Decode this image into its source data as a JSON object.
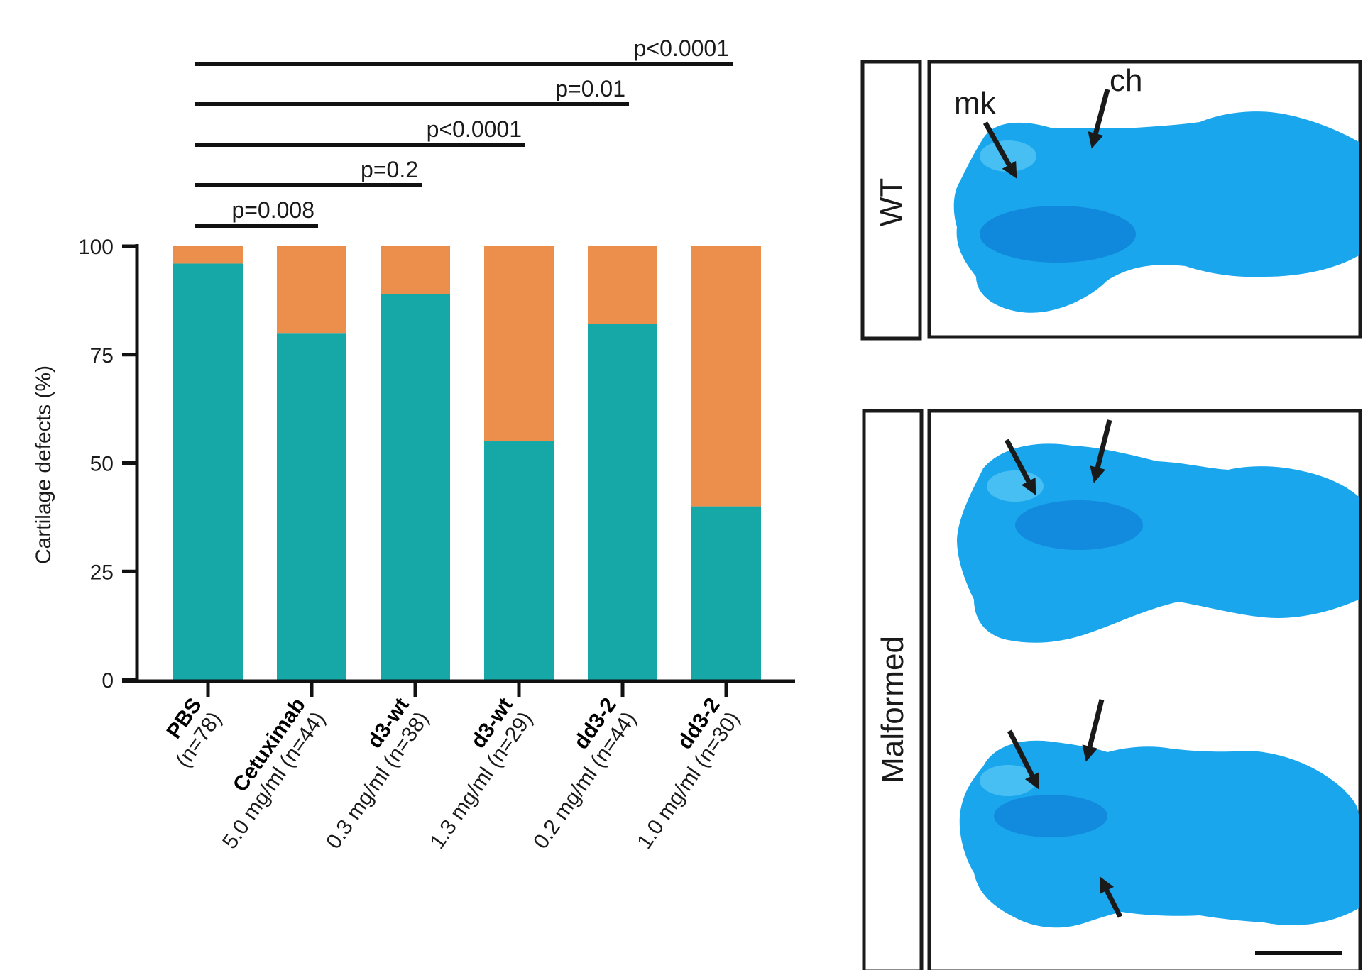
{
  "chart_data": {
    "type": "bar",
    "stacked": true,
    "ylabel": "Cartilage defects (%)",
    "ylim": [
      0,
      100
    ],
    "yticks": [
      "0",
      "25",
      "50",
      "75",
      "100"
    ],
    "categories": [
      {
        "name": "PBS",
        "detail": "(n=78)"
      },
      {
        "name": "Cetuximab",
        "detail": "5.0 mg/ml (n=44)"
      },
      {
        "name": "d3-wt",
        "detail": "0.3 mg/ml (n=38)"
      },
      {
        "name": "d3-wt",
        "detail": "1.3 mg/ml (n=29)"
      },
      {
        "name": "dd3-2",
        "detail": "0.2 mg/ml (n=44)"
      },
      {
        "name": "dd3-2",
        "detail": "1.0 mg/ml (n=30)"
      }
    ],
    "series": [
      {
        "name": "WT",
        "color": "#16a7a7",
        "values": [
          96,
          80,
          89,
          55,
          82,
          40
        ]
      },
      {
        "name": "Malformed",
        "color": "#ec8e4c",
        "values": [
          4,
          20,
          11,
          45,
          18,
          60
        ]
      }
    ],
    "comparisons": [
      {
        "to_category": 1,
        "label": "p=0.008"
      },
      {
        "to_category": 2,
        "label": "p=0.2"
      },
      {
        "to_category": 3,
        "label": "p<0.0001"
      },
      {
        "to_category": 4,
        "label": "p=0.01"
      },
      {
        "to_category": 5,
        "label": "p<0.0001"
      }
    ]
  },
  "micrographs": {
    "panel_top_label": "WT",
    "panel_bottom_label": "Malformed",
    "annotation_mk": "mk",
    "annotation_ch": "ch",
    "stain_color": "#1aa6ec"
  }
}
